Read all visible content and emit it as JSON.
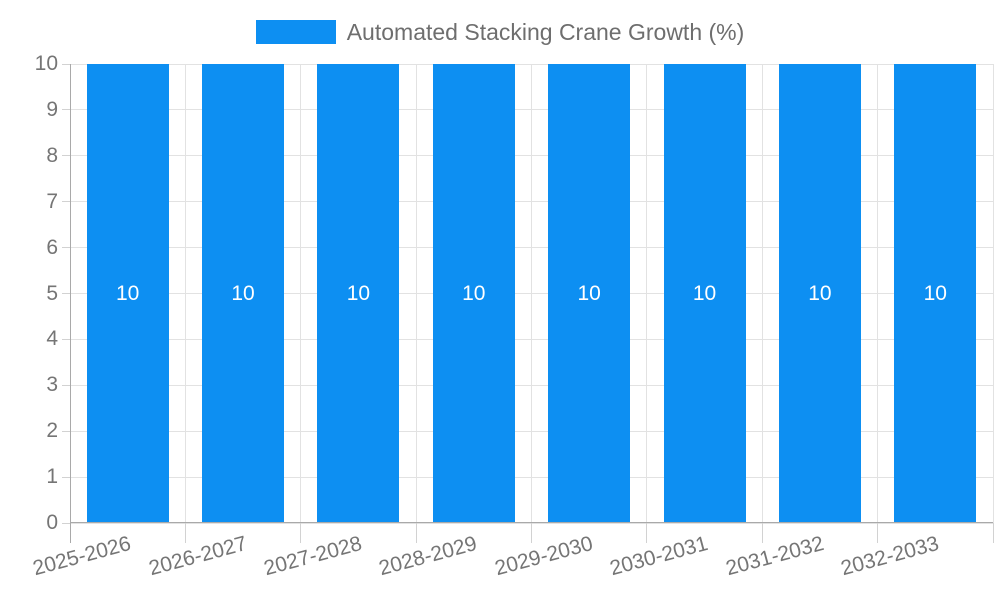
{
  "legend": {
    "label": "Automated Stacking Crane Growth (%)"
  },
  "chart_data": {
    "type": "bar",
    "title": "Automated Stacking Crane Growth (%)",
    "xlabel": "",
    "ylabel": "",
    "categories": [
      "2025-2026",
      "2026-2027",
      "2027-2028",
      "2028-2029",
      "2029-2030",
      "2030-2031",
      "2031-2032",
      "2032-2033"
    ],
    "series": [
      {
        "name": "Automated Stacking Crane Growth (%)",
        "values": [
          10,
          10,
          10,
          10,
          10,
          10,
          10,
          10
        ]
      }
    ],
    "bar_value_labels": [
      "10",
      "10",
      "10",
      "10",
      "10",
      "10",
      "10",
      "10"
    ],
    "ylim": [
      0,
      10
    ],
    "yticks": [
      0,
      1,
      2,
      3,
      4,
      5,
      6,
      7,
      8,
      9,
      10
    ],
    "grid": true,
    "legend_position": "top",
    "bar_color": "#0d8ff2",
    "bar_label_color": "#ffffff"
  },
  "colors": {
    "background": "#ffffff",
    "bar": "#0d8ff2",
    "grid": "#e2e2e2",
    "tick_mark": "#d2d2d2",
    "axis": "#a9a9a9",
    "tick_text": "#757575",
    "legend_text": "#6e6e6e",
    "bar_label": "#ffffff"
  }
}
